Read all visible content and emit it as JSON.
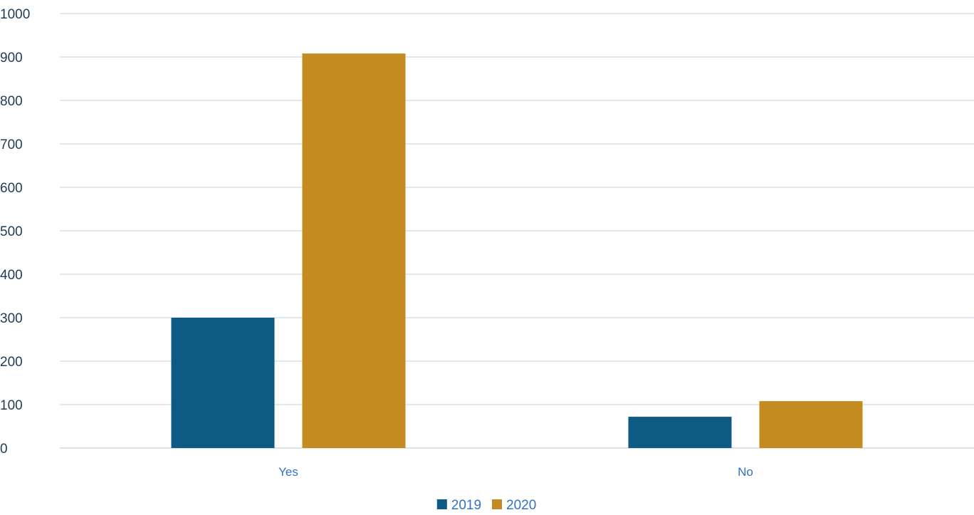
{
  "chart_data": {
    "type": "bar",
    "categories": [
      "Yes",
      "No"
    ],
    "series": [
      {
        "name": "2019",
        "values": [
          300,
          72
        ],
        "color": "#0d5a85"
      },
      {
        "name": "2020",
        "values": [
          908,
          108
        ],
        "color": "#c48c20"
      }
    ],
    "ylim": [
      0,
      1000
    ],
    "yticks": [
      0,
      100,
      200,
      300,
      400,
      500,
      600,
      700,
      800,
      900,
      1000
    ],
    "grid": true,
    "legend": "bottom-center"
  }
}
